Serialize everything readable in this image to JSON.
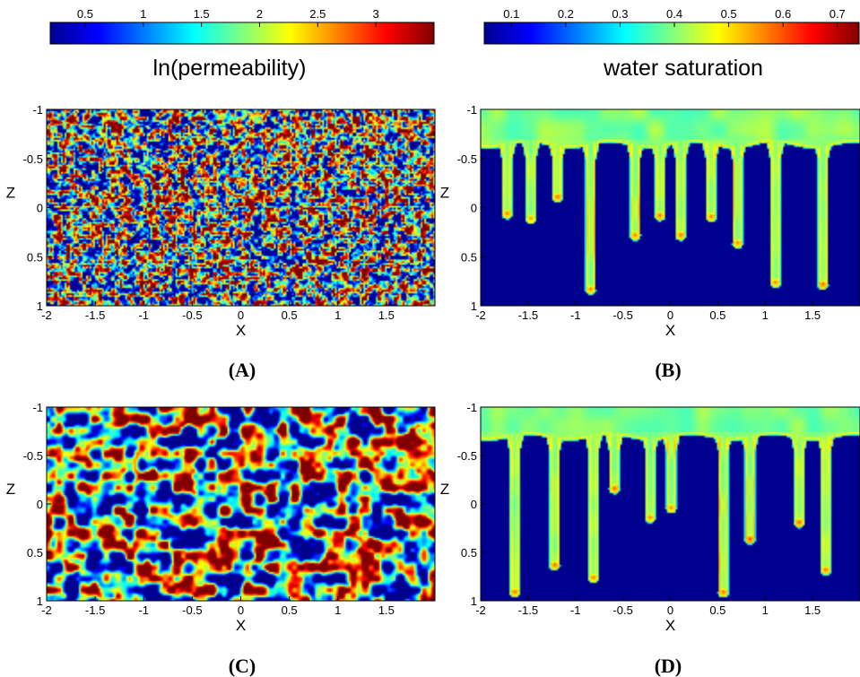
{
  "colormap": [
    "#00008f",
    "#0000ff",
    "#0080ff",
    "#00ffff",
    "#80ff80",
    "#ffff00",
    "#ff8000",
    "#ff0000",
    "#800000"
  ],
  "colorbars": [
    {
      "title": "ln(permeability)",
      "range": [
        0.2,
        3.5
      ],
      "ticks": [
        0.5,
        1,
        1.5,
        2,
        2.5,
        3
      ],
      "tick_labels": [
        "0.5",
        "1",
        "1.5",
        "2",
        "2.5",
        "3"
      ]
    },
    {
      "title": "water saturation",
      "range": [
        0.05,
        0.74
      ],
      "ticks": [
        0.1,
        0.2,
        0.3,
        0.4,
        0.5,
        0.6,
        0.7
      ],
      "tick_labels": [
        "0.1",
        "0.2",
        "0.3",
        "0.4",
        "0.5",
        "0.6",
        "0.7"
      ]
    }
  ],
  "axes": {
    "xlabel": "X",
    "ylabel": "Z",
    "x_ticks": [
      -2,
      -1.5,
      -1,
      -0.5,
      0,
      0.5,
      1,
      1.5
    ],
    "x_tick_labels": [
      "-2",
      "-1.5",
      "-1",
      "-0.5",
      "0",
      "0.5",
      "1",
      "1.5"
    ],
    "z_ticks": [
      -1,
      -0.5,
      0,
      0.5,
      1
    ],
    "z_tick_labels": [
      "-1",
      "-0.5",
      "0",
      "0.5",
      "1"
    ],
    "xlim": [
      -2,
      2
    ],
    "zlim": [
      -1,
      1
    ],
    "z_inverted": true
  },
  "chart_data": [
    {
      "type": "heatmap",
      "panel_label": "(A)",
      "field": "ln(permeability)",
      "description": "fine-scale random field",
      "correlation_length": 0.035,
      "value_range": [
        0.2,
        3.5
      ],
      "xlim": [
        -2,
        2
      ],
      "zlim": [
        -1,
        1
      ]
    },
    {
      "type": "heatmap",
      "panel_label": "(B)",
      "field": "water saturation",
      "top_layer_depth": -0.65,
      "fingers": [
        {
          "x": -1.73,
          "tip_z": 0.05
        },
        {
          "x": -1.48,
          "tip_z": 0.1
        },
        {
          "x": -1.2,
          "tip_z": -0.12
        },
        {
          "x": -0.85,
          "tip_z": 0.82
        },
        {
          "x": -0.38,
          "tip_z": 0.27
        },
        {
          "x": -0.12,
          "tip_z": 0.07
        },
        {
          "x": 0.1,
          "tip_z": 0.27
        },
        {
          "x": 0.42,
          "tip_z": 0.08
        },
        {
          "x": 0.7,
          "tip_z": 0.35
        },
        {
          "x": 1.1,
          "tip_z": 0.75
        },
        {
          "x": 1.6,
          "tip_z": 0.77
        }
      ],
      "xlim": [
        -2,
        2
      ],
      "zlim": [
        -1,
        1
      ]
    },
    {
      "type": "heatmap",
      "panel_label": "(C)",
      "field": "ln(permeability)",
      "description": "coarse-scale random field",
      "correlation_length": 0.1,
      "value_range": [
        0.2,
        3.5
      ],
      "xlim": [
        -2,
        2
      ],
      "zlim": [
        -1,
        1
      ]
    },
    {
      "type": "heatmap",
      "panel_label": "(D)",
      "field": "water saturation",
      "top_layer_depth": -0.7,
      "fingers": [
        {
          "x": -1.65,
          "tip_z": 0.9
        },
        {
          "x": -1.23,
          "tip_z": 0.62
        },
        {
          "x": -0.82,
          "tip_z": 0.75
        },
        {
          "x": -0.6,
          "tip_z": -0.17
        },
        {
          "x": -0.22,
          "tip_z": 0.13
        },
        {
          "x": 0.0,
          "tip_z": 0.03
        },
        {
          "x": 0.55,
          "tip_z": 0.9
        },
        {
          "x": 0.83,
          "tip_z": 0.35
        },
        {
          "x": 1.35,
          "tip_z": 0.18
        },
        {
          "x": 1.63,
          "tip_z": 0.67
        }
      ],
      "xlim": [
        -2,
        2
      ],
      "zlim": [
        -1,
        1
      ]
    }
  ]
}
